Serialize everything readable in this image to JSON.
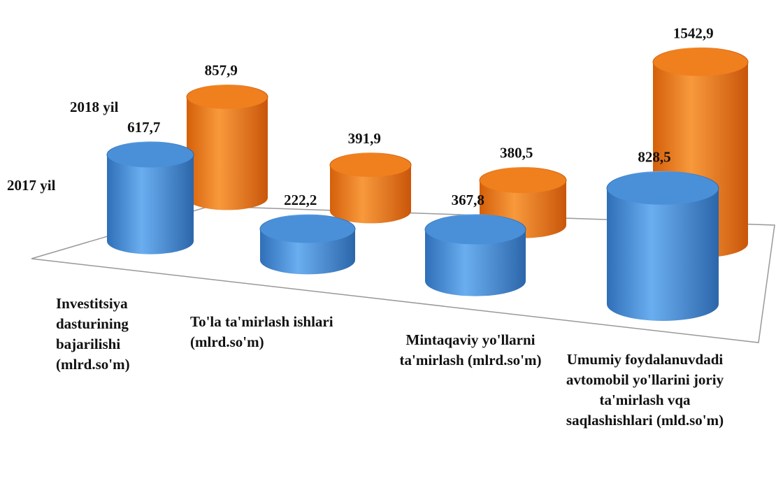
{
  "chart_data": {
    "type": "cylinder3d",
    "categories": [
      "Investitsiya dasturining bajarilishi (mlrd.so'm)",
      "To'la ta'mirlash ishlari (mlrd.so'm)",
      "Mintaqaviy yo'llarni ta'mirlash (mlrd.so'm)",
      "Umumiy foydalanuvdadi avtomobil yo'llarini joriy ta'mirlash vqa saqlashishlari (mld.so'm)"
    ],
    "series": [
      {
        "name": "2017 yil",
        "color": "#4a90d9",
        "values": [
          617.7,
          222.2,
          367.8,
          828.5
        ],
        "value_labels": [
          "617,7",
          "222,2",
          "367,8",
          "828,5"
        ]
      },
      {
        "name": "2018 yil",
        "color": "#f07f1e",
        "values": [
          857.9,
          391.9,
          380.5,
          1542.9
        ],
        "value_labels": [
          "857,9",
          "391,9",
          "380,5",
          "1542,9"
        ]
      }
    ]
  }
}
